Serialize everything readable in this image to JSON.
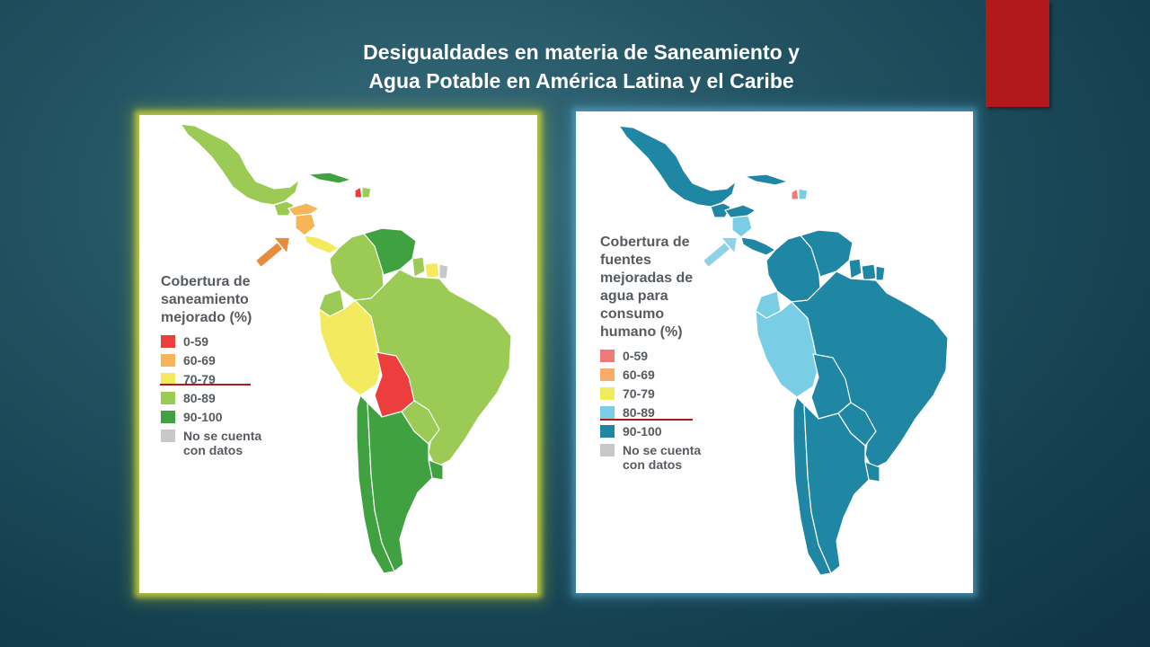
{
  "slide": {
    "title_line1": "Desigualdades en materia de Saneamiento y",
    "title_line2": "Agua Potable en América Latina y el Caribe",
    "accent_color": "#b2191a"
  },
  "map_left": {
    "legend_title_lines": [
      "Cobertura de",
      "saneamiento",
      "mejorado (%)"
    ],
    "legend": [
      {
        "label": [
          "0-59"
        ],
        "color": "#ec3f3d"
      },
      {
        "label": [
          "60-69"
        ],
        "color": "#f6b556"
      },
      {
        "label": [
          "70-79"
        ],
        "color": "#f4ea5f"
      },
      {
        "label": [
          "80-89"
        ],
        "color": "#9ccb55"
      },
      {
        "label": [
          "90-100"
        ],
        "color": "#3fa13f"
      },
      {
        "label": [
          "No se cuenta",
          "con datos"
        ],
        "color": "#c8c8c8"
      }
    ],
    "highlighted_class": "60-69",
    "arrow_color": "#e98a3c"
  },
  "map_right": {
    "legend_title_lines": [
      "Cobertura de",
      "fuentes",
      "mejoradas de",
      "agua para",
      "consumo",
      "humano (%)"
    ],
    "legend": [
      {
        "label": [
          "0-59"
        ],
        "color": "#ee7a7a"
      },
      {
        "label": [
          "60-69"
        ],
        "color": "#f6ad6a"
      },
      {
        "label": [
          "70-79"
        ],
        "color": "#f2eb5b"
      },
      {
        "label": [
          "80-89"
        ],
        "color": "#79cde4"
      },
      {
        "label": [
          "90-100"
        ],
        "color": "#1f87a4"
      },
      {
        "label": [
          "No se cuenta",
          "con datos"
        ],
        "color": "#c8c8c8"
      }
    ],
    "highlighted_class": "80-89",
    "arrow_color": "#8fd2e6"
  }
}
